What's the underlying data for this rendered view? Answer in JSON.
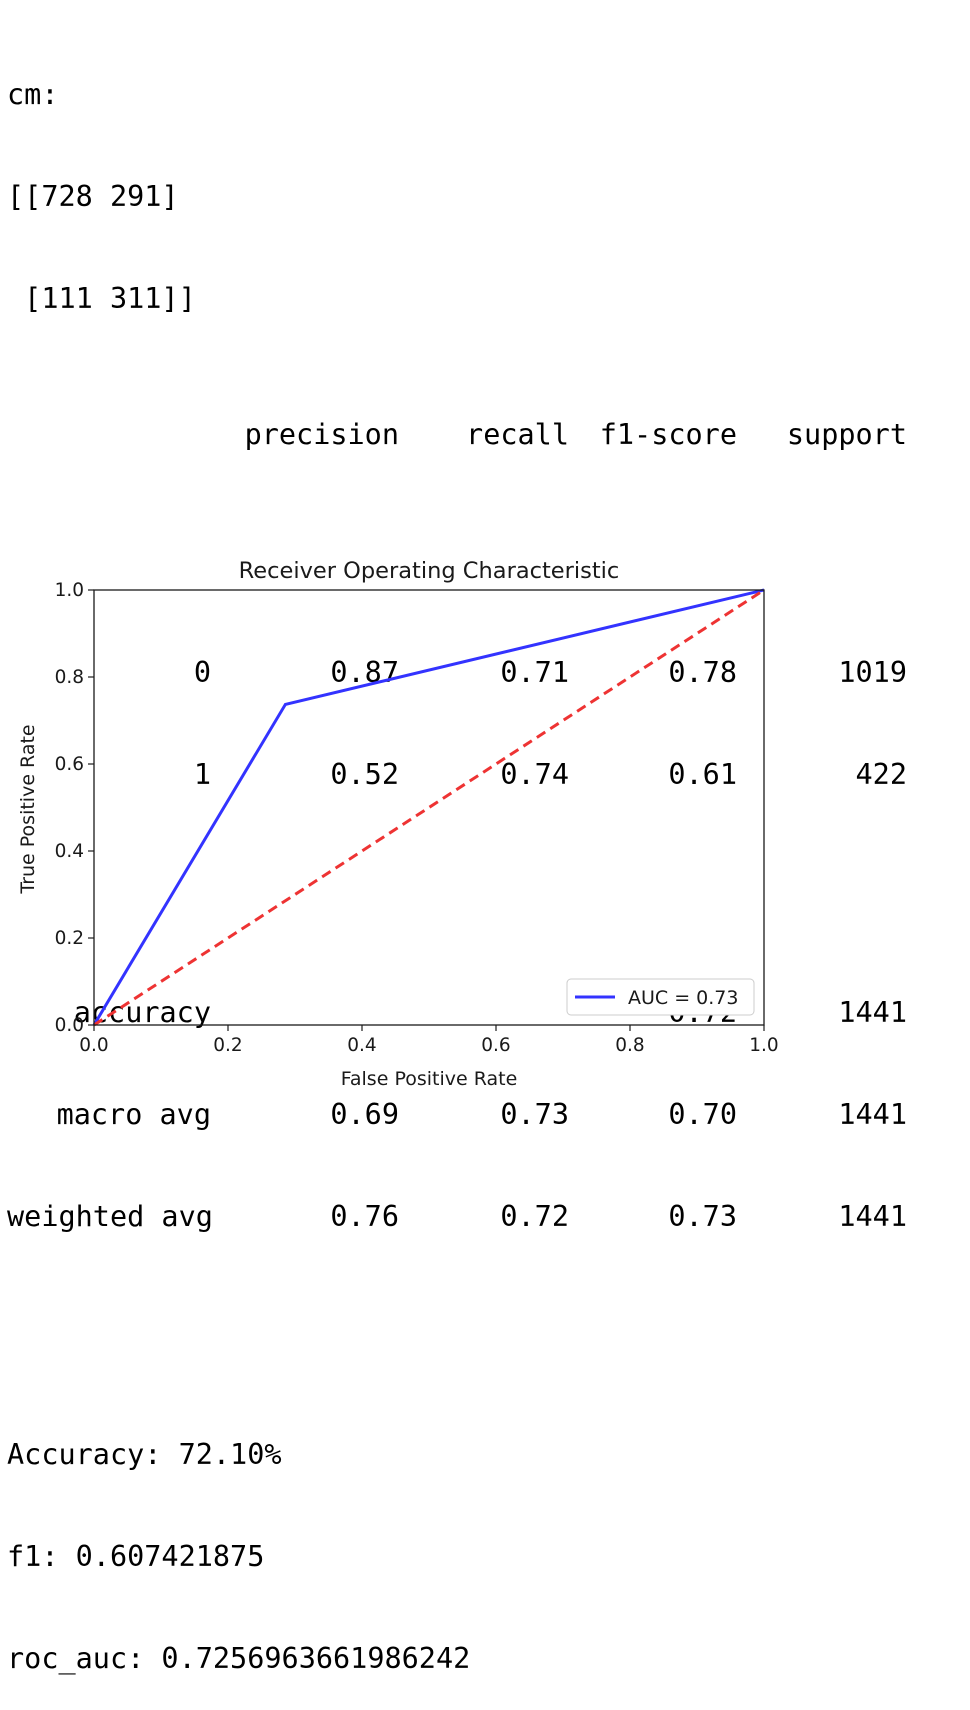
{
  "cm": {
    "label": "cm:",
    "row1": "[[728 291]",
    "row2": " [111 311]]"
  },
  "report": {
    "headers": [
      "precision",
      "recall",
      "f1-score",
      "support"
    ],
    "rows": [
      {
        "label": "0",
        "precision": "0.87",
        "recall": "0.71",
        "f1": "0.78",
        "support": "1019"
      },
      {
        "label": "1",
        "precision": "0.52",
        "recall": "0.74",
        "f1": "0.61",
        "support": "422"
      }
    ],
    "summary": [
      {
        "label": "accuracy",
        "precision": "",
        "recall": "",
        "f1": "0.72",
        "support": "1441"
      },
      {
        "label": "macro avg",
        "precision": "0.69",
        "recall": "0.73",
        "f1": "0.70",
        "support": "1441"
      },
      {
        "label": "weighted avg",
        "precision": "0.76",
        "recall": "0.72",
        "f1": "0.73",
        "support": "1441"
      }
    ]
  },
  "metrics": {
    "accuracy_line": "Accuracy: 72.10%",
    "f1_line": "f1: 0.607421875",
    "roc_auc_line": "roc_auc: 0.7256963661986242"
  },
  "chart_data": {
    "type": "line",
    "title": "Receiver Operating Characteristic",
    "xlabel": "False Positive Rate",
    "ylabel": "True Positive Rate",
    "xlim": [
      0,
      1
    ],
    "ylim": [
      0,
      1
    ],
    "xticks": [
      "0.0",
      "0.2",
      "0.4",
      "0.6",
      "0.8",
      "1.0"
    ],
    "yticks": [
      "0.0",
      "0.2",
      "0.4",
      "0.6",
      "0.8",
      "1.0"
    ],
    "grid": false,
    "legend_position": "lower right",
    "series": [
      {
        "name": "AUC = 0.73",
        "color": "#3333ff",
        "style": "solid",
        "x": [
          0.0,
          0.2856,
          1.0
        ],
        "y": [
          0.0,
          0.737,
          1.0
        ]
      },
      {
        "color": "#ee3333",
        "style": "dashed",
        "x": [
          0.0,
          1.0
        ],
        "y": [
          0.0,
          1.0
        ]
      }
    ]
  }
}
